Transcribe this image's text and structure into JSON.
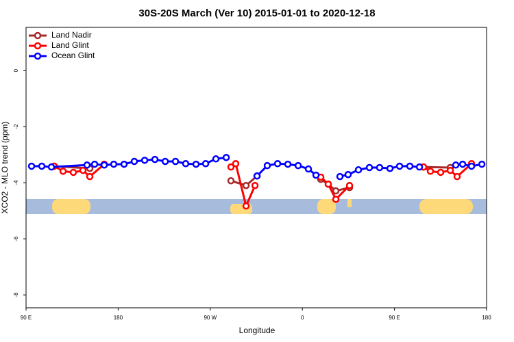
{
  "chart_data": {
    "type": "line",
    "title": "30S-20S March (Ver 10)   2015-01-01 to 2020-12-18",
    "xlabel": "Longitude",
    "ylabel": "XCO2 - MLO trend (ppm)",
    "xlim": [
      90,
      540
    ],
    "ylim": [
      -8.46,
      1.54
    ],
    "xticks": [
      {
        "value": 90,
        "label": "90 E"
      },
      180,
      {
        "value": 270,
        "label": "90 W"
      },
      {
        "value": 360,
        "label": "0"
      },
      {
        "value": 450,
        "label": "90 E"
      },
      {
        "value": 540,
        "label": "180"
      }
    ],
    "yticks": [
      0,
      -2,
      -4,
      -6,
      -8
    ],
    "legend_position": "top-left",
    "series": [
      {
        "name": "Land Nadir",
        "color": "#a52a2a",
        "x": [
          117.5,
          152.3,
          210,
          290.2,
          305,
          315.7,
          350,
          378,
          385.3,
          392.7,
          406.1,
          450,
          478.4,
          504.5
        ],
        "values": [
          -3.41,
          -3.49,
          null,
          -3.93,
          -4.1,
          -3.76,
          null,
          -3.88,
          -4.05,
          -4.29,
          -4.17,
          null,
          -3.44,
          -3.46
        ]
      },
      {
        "name": "Land Glint",
        "color": "#ff0000",
        "x": [
          117.5,
          126.2,
          136.2,
          145.6,
          152.3,
          166.4,
          210,
          290.2,
          294.9,
          305,
          313.7,
          350,
          378,
          385.3,
          392.7,
          406.1,
          450,
          478.4,
          485.1,
          495.1,
          504.5,
          511.2,
          525.3
        ],
        "values": [
          -3.41,
          -3.59,
          -3.63,
          -3.56,
          -3.78,
          -3.34,
          null,
          -3.44,
          -3.32,
          -4.83,
          -4.1,
          null,
          -3.8,
          -4.05,
          -4.59,
          -4.1,
          null,
          -3.44,
          -3.59,
          -3.63,
          -3.56,
          -3.78,
          -3.32
        ]
      },
      {
        "name": "Ocean Glint",
        "color": "#0000ff",
        "x": [
          95.4,
          105.4,
          114.8,
          149.6,
          157,
          166.4,
          175.7,
          185.8,
          195.8,
          205.9,
          215.9,
          226,
          236,
          246,
          256.1,
          265.5,
          275.5,
          285.6,
          300,
          315.7,
          325.7,
          335.8,
          345.8,
          355.9,
          365.9,
          373.3,
          385,
          396.7,
          404.7,
          414.8,
          425.5,
          435.5,
          445.6,
          455,
          465,
          474.4,
          490,
          509.9,
          516.6,
          525.3,
          535.4
        ],
        "values": [
          -3.41,
          -3.41,
          -3.44,
          -3.37,
          -3.34,
          -3.37,
          -3.34,
          -3.34,
          -3.24,
          -3.2,
          -3.17,
          -3.24,
          -3.24,
          -3.32,
          -3.34,
          -3.32,
          -3.15,
          -3.1,
          null,
          -3.76,
          -3.39,
          -3.32,
          -3.34,
          -3.39,
          -3.51,
          -3.73,
          null,
          -3.78,
          -3.71,
          -3.54,
          -3.46,
          -3.46,
          -3.49,
          -3.41,
          -3.41,
          -3.44,
          null,
          -3.37,
          -3.34,
          -3.41,
          -3.34
        ]
      }
    ]
  }
}
